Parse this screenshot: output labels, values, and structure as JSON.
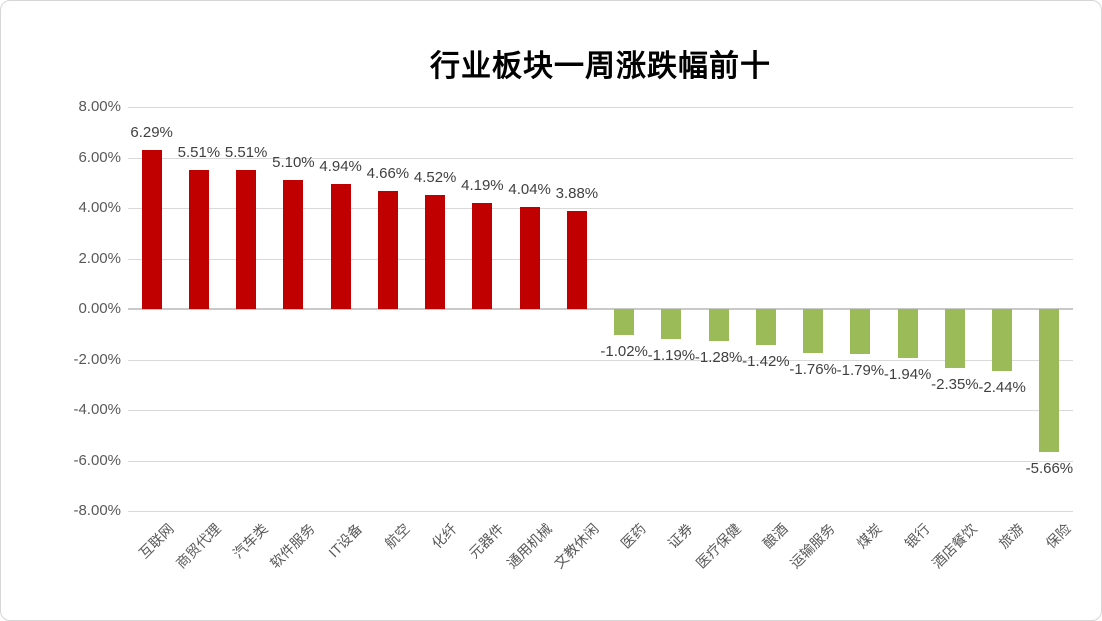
{
  "title": "行业板块一周涨跌幅前十",
  "chart_data": {
    "type": "bar",
    "title": "行业板块一周涨跌幅前十",
    "categories": [
      "互联网",
      "商贸代理",
      "汽车类",
      "软件服务",
      "IT设备",
      "航空",
      "化纤",
      "元器件",
      "通用机械",
      "文教休闲",
      "医药",
      "证券",
      "医疗保健",
      "酿酒",
      "运输服务",
      "煤炭",
      "银行",
      "酒店餐饮",
      "旅游",
      "保险"
    ],
    "values": [
      6.29,
      5.51,
      5.51,
      5.1,
      4.94,
      4.66,
      4.52,
      4.19,
      4.04,
      3.88,
      -1.02,
      -1.19,
      -1.28,
      -1.42,
      -1.76,
      -1.79,
      -1.94,
      -2.35,
      -2.44,
      -5.66
    ],
    "value_labels": [
      "6.29%",
      "5.51%",
      "5.51%",
      "5.10%",
      "4.94%",
      "4.66%",
      "4.52%",
      "4.19%",
      "4.04%",
      "3.88%",
      "-1.02%",
      "-1.19%",
      "-1.28%",
      "-1.42%",
      "-1.76%",
      "-1.79%",
      "-1.94%",
      "-2.35%",
      "-2.44%",
      "-5.66%"
    ],
    "xlabel": "",
    "ylabel": "",
    "ylim": [
      -8,
      8
    ],
    "ytick_step": 2,
    "ytick_values": [
      8,
      6,
      4,
      2,
      0,
      -2,
      -4,
      -6,
      -8
    ],
    "ytick_labels": [
      "8.00%",
      "6.00%",
      "4.00%",
      "2.00%",
      "0.00%",
      "-2.00%",
      "-4.00%",
      "-6.00%",
      "-8.00%"
    ],
    "grid": true,
    "legend": "none",
    "colors": {
      "positive_bar": "#c00000",
      "negative_bar": "#9bbb59",
      "gridline": "#d9d9d9",
      "zero_line": "#c9c9c9",
      "axis_text": "#595959",
      "data_label_text": "#404040",
      "title_text": "#000000",
      "background": "#ffffff",
      "frame_border": "#d6d6d6"
    }
  }
}
